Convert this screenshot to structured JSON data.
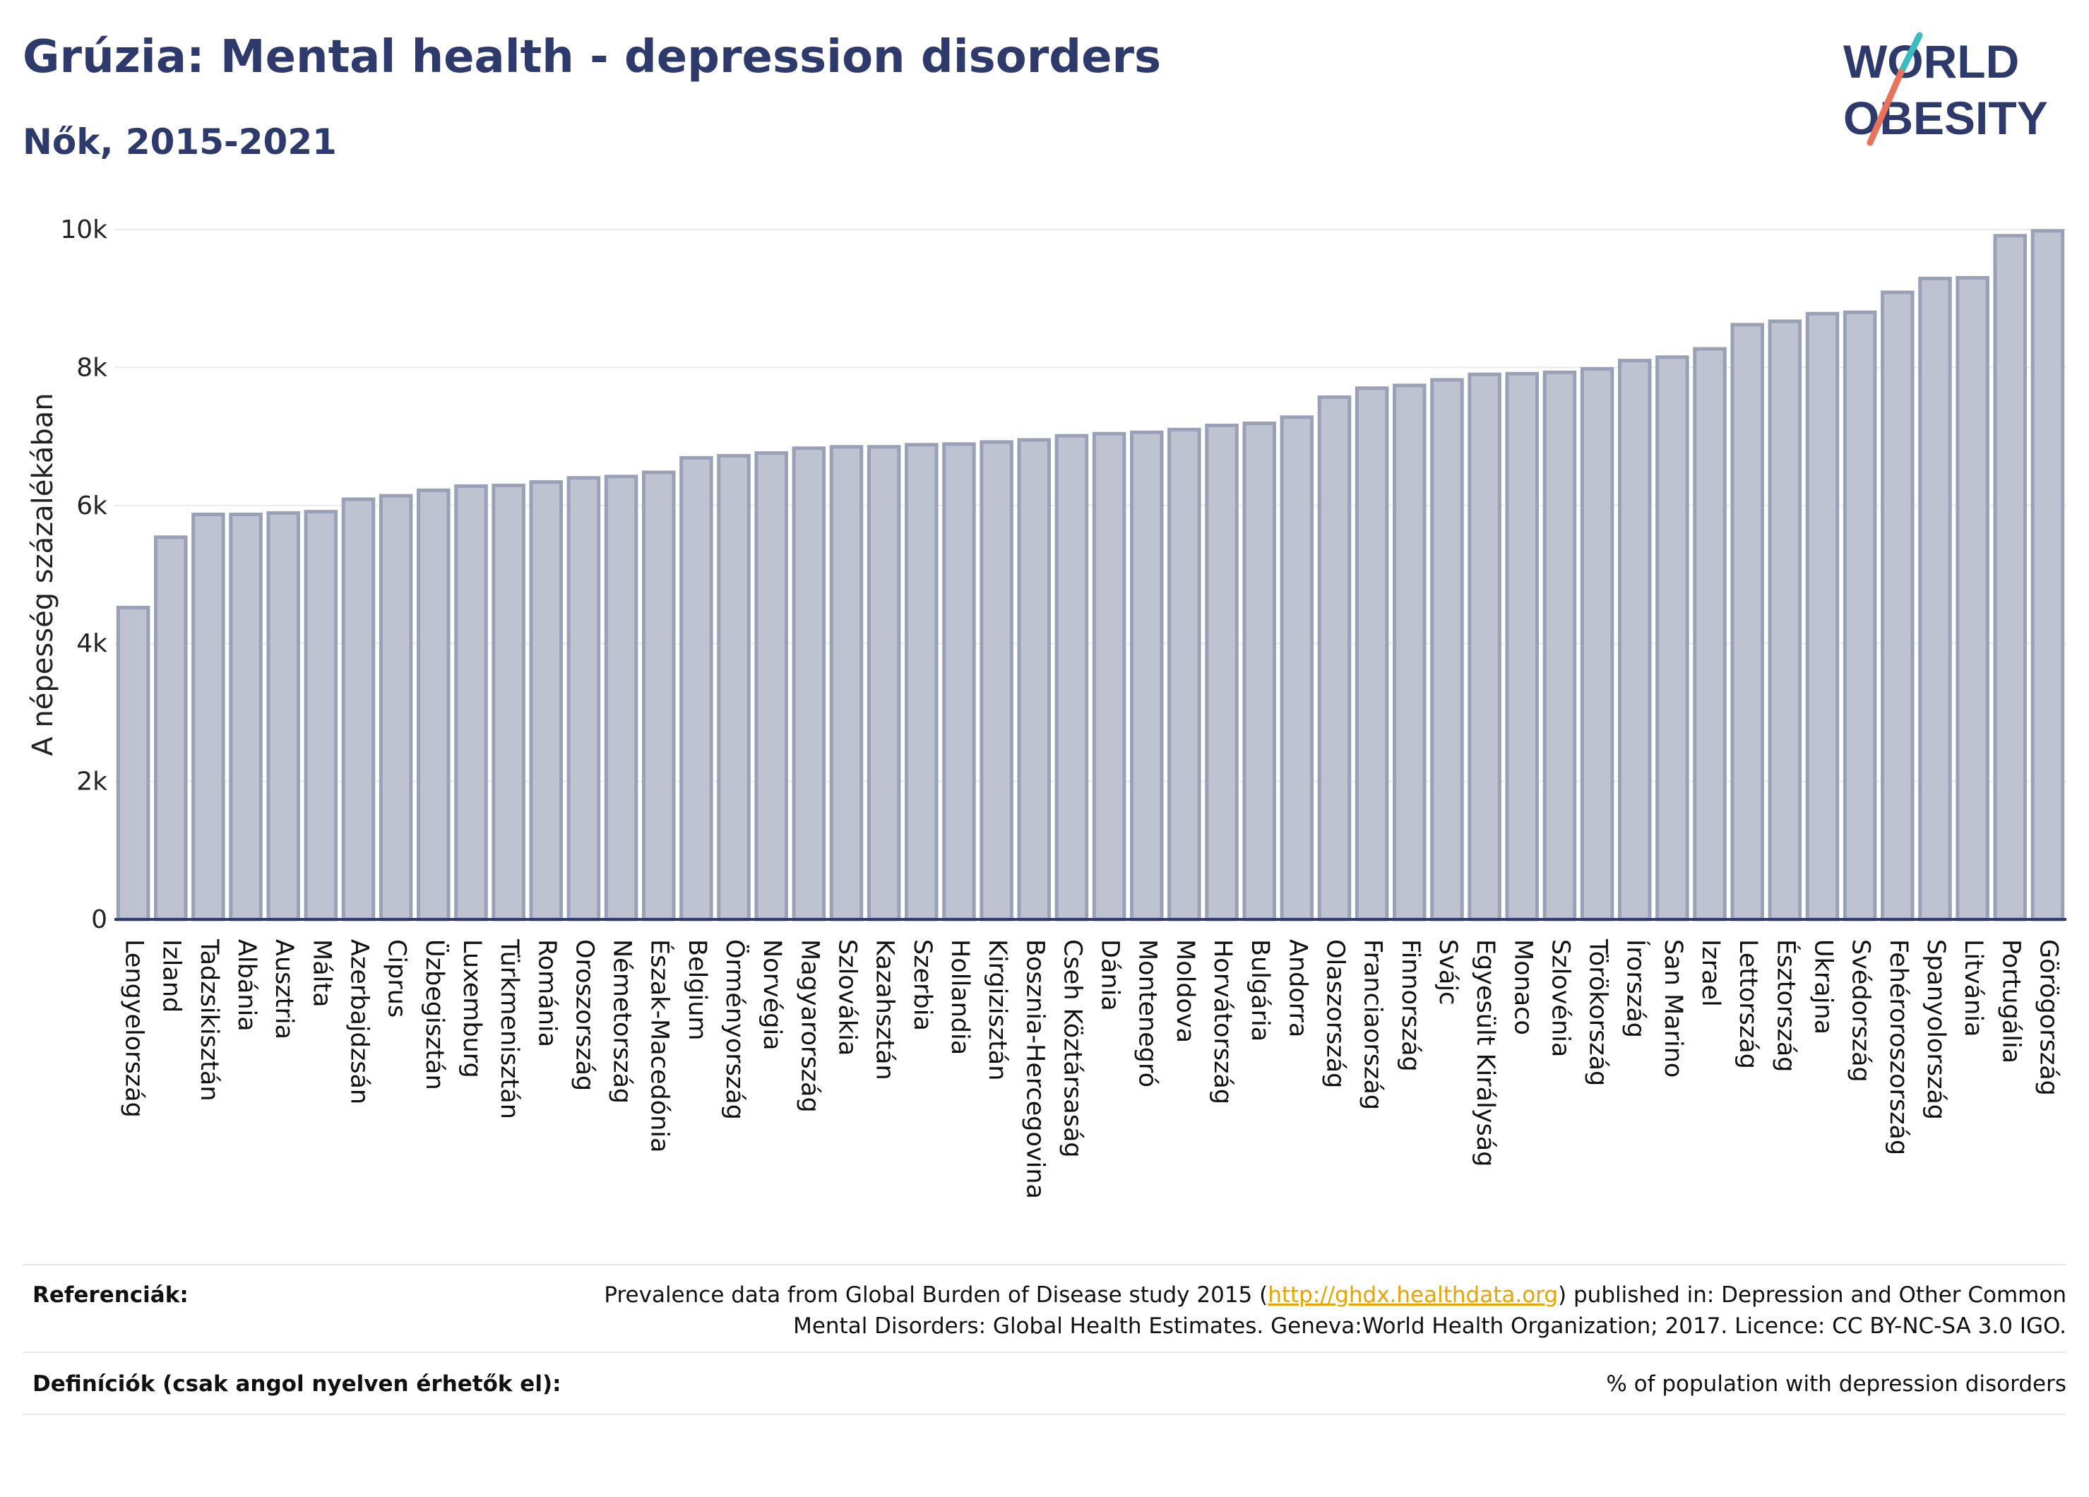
{
  "header": {
    "title": "Grúzia: Mental health - depression disorders",
    "subtitle": "Nők, 2015-2021"
  },
  "logo": {
    "line1": "WORLD",
    "line2": "OBESITY",
    "colors": {
      "text": "#2e3a6b",
      "slash_top": "#3bbcc0",
      "slash_bottom": "#e8735a"
    }
  },
  "colors": {
    "bar_fill": "#bfc3d1",
    "bar_stroke": "#9aa0b6",
    "axis": "#2e3a6b",
    "grid": "#e9e9ee",
    "accent": "#2e3a6b",
    "link": "#e8a400"
  },
  "chart_data": {
    "type": "bar",
    "ylabel": "A népesség százalékában",
    "ylim": [
      0,
      10000
    ],
    "yticks": [
      0,
      2000,
      4000,
      6000,
      8000,
      10000
    ],
    "ytick_labels": [
      "0",
      "2k",
      "4k",
      "6k",
      "8k",
      "10k"
    ],
    "grid": true,
    "categories": [
      "Lengyelország",
      "Izland",
      "Tadzsikisztán",
      "Albánia",
      "Ausztria",
      "Málta",
      "Azerbajdzsán",
      "Ciprus",
      "Üzbegisztán",
      "Luxemburg",
      "Türkmenisztán",
      "Románia",
      "Oroszország",
      "Németország",
      "Észak-Macedónia",
      "Belgium",
      "Örményország",
      "Norvégia",
      "Magyarország",
      "Szlovákia",
      "Kazahsztán",
      "Szerbia",
      "Hollandia",
      "Kirgizisztán",
      "Bosznia-Hercegovina",
      "Cseh Köztársaság",
      "Dánia",
      "Montenegró",
      "Moldova",
      "Horvátország",
      "Bulgária",
      "Andorra",
      "Olaszország",
      "Franciaország",
      "Finnország",
      "Svájc",
      "Egyesült Királyság",
      "Monaco",
      "Szlovénia",
      "Törökország",
      "Írország",
      "San Marino",
      "Izrael",
      "Lettország",
      "Észtország",
      "Ukrajna",
      "Svédország",
      "Fehéroroszország",
      "Spanyolország",
      "Litvánia",
      "Portugália",
      "Görögország"
    ],
    "values": [
      4520,
      5540,
      5870,
      5870,
      5890,
      5910,
      6090,
      6140,
      6220,
      6280,
      6290,
      6340,
      6400,
      6420,
      6480,
      6690,
      6720,
      6760,
      6830,
      6850,
      6850,
      6880,
      6890,
      6920,
      6950,
      7010,
      7040,
      7060,
      7100,
      7160,
      7190,
      7280,
      7570,
      7700,
      7740,
      7820,
      7900,
      7910,
      7930,
      7980,
      8100,
      8150,
      8270,
      8620,
      8670,
      8780,
      8800,
      9090,
      9290,
      9300,
      9910,
      9980
    ]
  },
  "references": {
    "ref_label": "Referenciák:",
    "ref_text_before": "Prevalence data from Global Burden of Disease study 2015 (",
    "ref_link": "http://ghdx.healthdata.org",
    "ref_text_after": ") published in: Depression and Other Common",
    "ref_text_line2": "Mental Disorders: Global Health Estimates. Geneva:World Health Organization; 2017. Licence: CC BY-NC-SA 3.0 IGO.",
    "def_label": "Definíciók (csak angol nyelven érhetők el):",
    "def_text": "% of population with depression disorders"
  }
}
